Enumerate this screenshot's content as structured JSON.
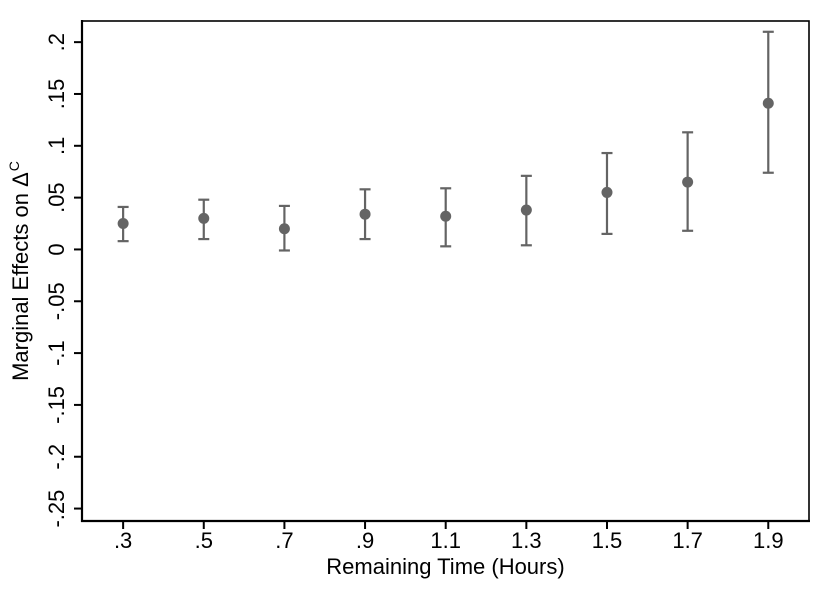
{
  "figure": {
    "background": "#ffffff",
    "axis_color": "#000000",
    "marker_color": "#646464",
    "errorbar_color": "#646464"
  },
  "chart_data": {
    "type": "scatter",
    "subtype": "point-estimates-with-confidence-intervals",
    "title": "",
    "xlabel": "Remaining Time (Hours)",
    "ylabel": "Marginal Effects on Δ",
    "ylabel_superscript": "C",
    "x": [
      0.3,
      0.5,
      0.7,
      0.9,
      1.1,
      1.3,
      1.5,
      1.7,
      1.9
    ],
    "x_tick_labels": [
      ".3",
      ".5",
      ".7",
      ".9",
      "1.1",
      "1.3",
      "1.5",
      "1.7",
      "1.9"
    ],
    "y_ticks": [
      0.2,
      0.15,
      0.1,
      0.05,
      0,
      -0.05,
      -0.1,
      -0.15,
      -0.2,
      -0.25
    ],
    "y_tick_labels": [
      ".2",
      ".15",
      ".1",
      ".05",
      "0",
      "-.05",
      "-.1",
      "-.15",
      "-.2",
      "-.25"
    ],
    "xlim": [
      0.198,
      2.001
    ],
    "ylim": [
      -0.262,
      0.2204
    ],
    "grid": false,
    "legend": false,
    "series": [
      {
        "name": "marginal-effects",
        "values": [
          0.025,
          0.03,
          0.02,
          0.034,
          0.032,
          0.038,
          0.055,
          0.065,
          0.141
        ],
        "ci_low": [
          0.008,
          0.01,
          -0.001,
          0.01,
          0.003,
          0.004,
          0.015,
          0.018,
          0.074
        ],
        "ci_high": [
          0.041,
          0.048,
          0.042,
          0.058,
          0.059,
          0.071,
          0.093,
          0.113,
          0.21
        ]
      }
    ]
  }
}
